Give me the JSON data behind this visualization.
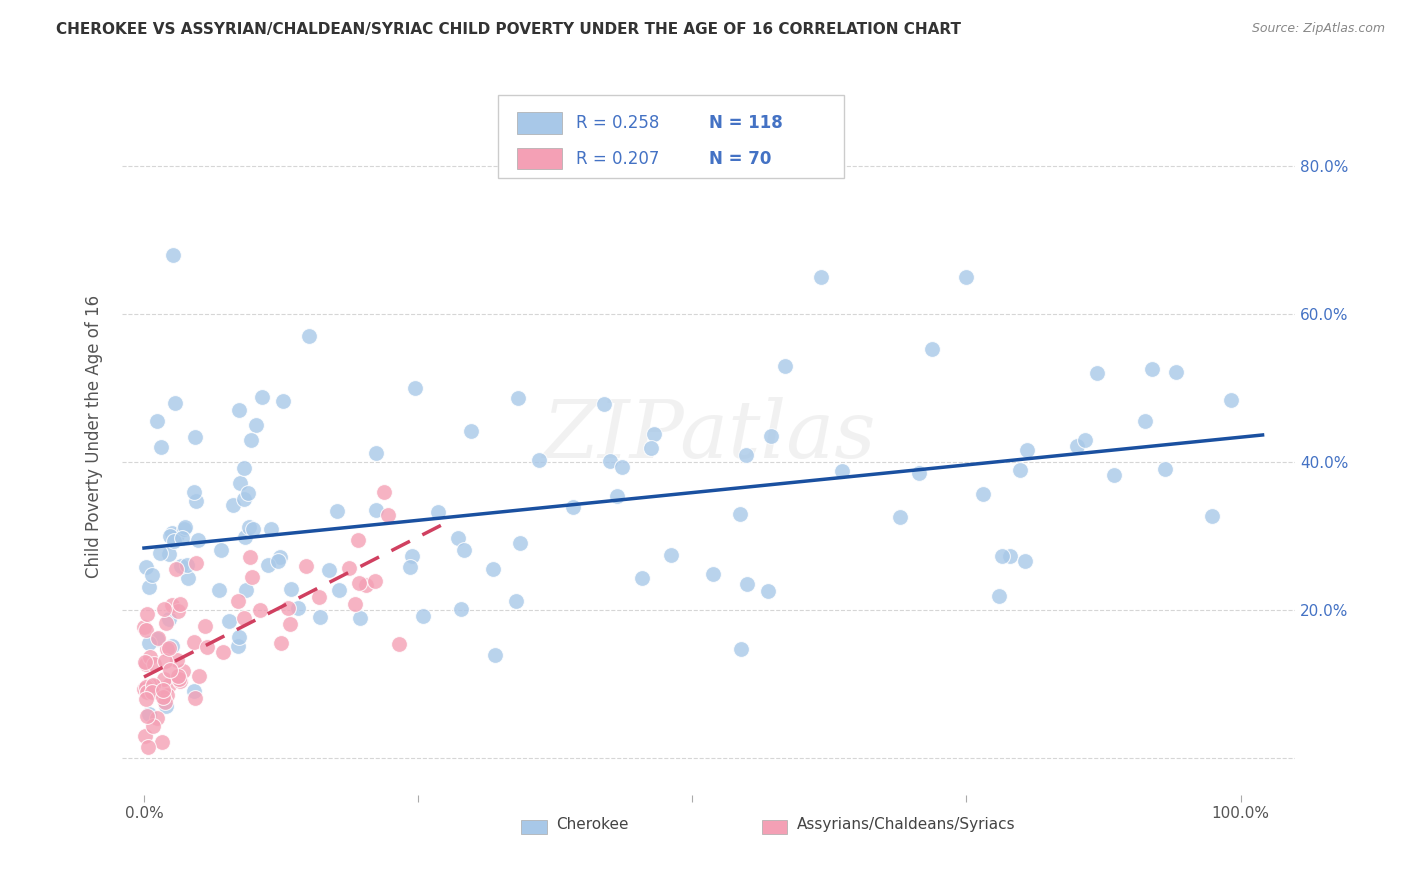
{
  "title": "CHEROKEE VS ASSYRIAN/CHALDEAN/SYRIAC CHILD POVERTY UNDER THE AGE OF 16 CORRELATION CHART",
  "source": "Source: ZipAtlas.com",
  "ylabel": "Child Poverty Under the Age of 16",
  "xlim": [
    -0.02,
    1.05
  ],
  "ylim": [
    -0.05,
    0.92
  ],
  "cherokee_R": 0.258,
  "cherokee_N": 118,
  "assyrian_R": 0.207,
  "assyrian_N": 70,
  "cherokee_color": "#a8c8e8",
  "assyrian_color": "#f4a0b5",
  "trendline_cherokee_color": "#1a50a0",
  "trendline_assyrian_color": "#d04060",
  "background_color": "#ffffff",
  "grid_color": "#cccccc",
  "title_color": "#333333",
  "axis_label_color": "#555555",
  "legend_color": "#4472c4",
  "watermark": "ZIPatlas",
  "tick_color": "#4472c4",
  "source_color": "#888888"
}
